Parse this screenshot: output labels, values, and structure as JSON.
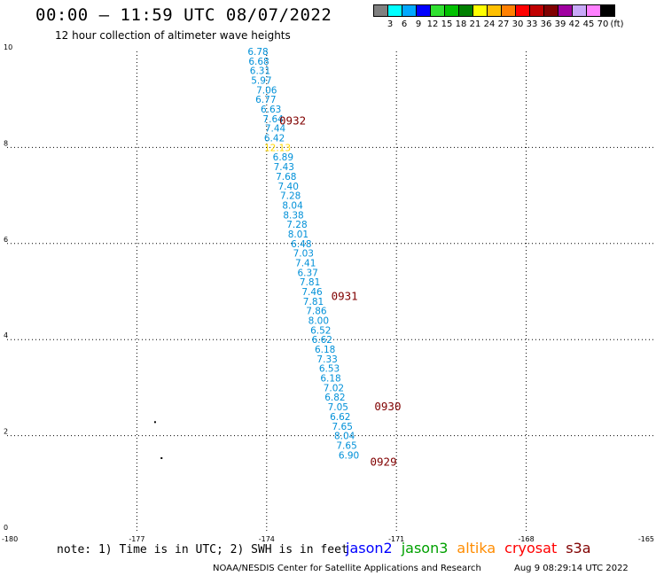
{
  "header": {
    "title": "00:00 – 11:59 UTC 08/07/2022",
    "subtitle": "12 hour collection of altimeter wave heights"
  },
  "legend": {
    "colors": [
      "#808080",
      "#00ffff",
      "#00a8ff",
      "#0000ff",
      "#30e030",
      "#00c000",
      "#008000",
      "#ffff00",
      "#ffc000",
      "#ff8000",
      "#ff0000",
      "#c00000",
      "#800000",
      "#a000a0",
      "#c8a8f8",
      "#ff80ff",
      "#000000"
    ],
    "labels": [
      "3",
      "6",
      "9",
      "12",
      "15",
      "18",
      "21",
      "24",
      "27",
      "30",
      "33",
      "36",
      "39",
      "42",
      "45",
      "70",
      "(ft)"
    ]
  },
  "chart_data": {
    "type": "scatter",
    "xlim": [
      -180,
      -165
    ],
    "ylim": [
      0,
      10
    ],
    "x_ticks": [
      "-180",
      "-177",
      "-174",
      "-171",
      "-168",
      "-165"
    ],
    "y_ticks": [
      "0",
      "2",
      "4",
      "6",
      "8",
      "10"
    ],
    "grid": true,
    "swh_points": [
      {
        "lon": -174.2,
        "lat": 10.0,
        "swh": "6.78",
        "color": "#0090d8"
      },
      {
        "lon": -174.18,
        "lat": 9.8,
        "swh": "6.68",
        "color": "#0090d8"
      },
      {
        "lon": -174.15,
        "lat": 9.6,
        "swh": "6.31",
        "color": "#0090d8"
      },
      {
        "lon": -174.12,
        "lat": 9.4,
        "swh": "5.97",
        "color": "#0090d8"
      },
      {
        "lon": -174.0,
        "lat": 9.2,
        "swh": "7.06",
        "color": "#0090d8"
      },
      {
        "lon": -174.02,
        "lat": 9.0,
        "swh": "6.77",
        "color": "#0090d8"
      },
      {
        "lon": -173.9,
        "lat": 8.8,
        "swh": "6.63",
        "color": "#0090d8"
      },
      {
        "lon": -173.85,
        "lat": 8.6,
        "swh": "7.64",
        "color": "#0090d8"
      },
      {
        "lon": -173.8,
        "lat": 8.4,
        "swh": "7.44",
        "color": "#0090d8"
      },
      {
        "lon": -173.82,
        "lat": 8.2,
        "swh": "6.42",
        "color": "#0090d8"
      },
      {
        "lon": -173.75,
        "lat": 8.0,
        "swh": "12.13",
        "color": "#ffd800"
      },
      {
        "lon": -173.62,
        "lat": 7.8,
        "swh": "6.89",
        "color": "#0090d8"
      },
      {
        "lon": -173.6,
        "lat": 7.6,
        "swh": "7.43",
        "color": "#0090d8"
      },
      {
        "lon": -173.55,
        "lat": 7.4,
        "swh": "7.68",
        "color": "#0090d8"
      },
      {
        "lon": -173.5,
        "lat": 7.2,
        "swh": "7.40",
        "color": "#0090d8"
      },
      {
        "lon": -173.45,
        "lat": 7.0,
        "swh": "7.28",
        "color": "#0090d8"
      },
      {
        "lon": -173.4,
        "lat": 6.8,
        "swh": "8.04",
        "color": "#0090d8"
      },
      {
        "lon": -173.38,
        "lat": 6.6,
        "swh": "8.38",
        "color": "#0090d8"
      },
      {
        "lon": -173.3,
        "lat": 6.4,
        "swh": "7.28",
        "color": "#0090d8"
      },
      {
        "lon": -173.27,
        "lat": 6.2,
        "swh": "8.01",
        "color": "#0090d8"
      },
      {
        "lon": -173.2,
        "lat": 6.0,
        "swh": "6.48",
        "color": "#0090d8"
      },
      {
        "lon": -173.15,
        "lat": 5.8,
        "swh": "7.03",
        "color": "#0090d8"
      },
      {
        "lon": -173.1,
        "lat": 5.6,
        "swh": "7.41",
        "color": "#0090d8"
      },
      {
        "lon": -173.05,
        "lat": 5.4,
        "swh": "6.37",
        "color": "#0090d8"
      },
      {
        "lon": -173.0,
        "lat": 5.2,
        "swh": "7.81",
        "color": "#0090d8"
      },
      {
        "lon": -172.95,
        "lat": 5.0,
        "swh": "7.46",
        "color": "#0090d8"
      },
      {
        "lon": -172.92,
        "lat": 4.8,
        "swh": "7.81",
        "color": "#0090d8"
      },
      {
        "lon": -172.85,
        "lat": 4.6,
        "swh": "7.86",
        "color": "#0090d8"
      },
      {
        "lon": -172.8,
        "lat": 4.4,
        "swh": "8.00",
        "color": "#0090d8"
      },
      {
        "lon": -172.75,
        "lat": 4.2,
        "swh": "6.52",
        "color": "#0090d8"
      },
      {
        "lon": -172.72,
        "lat": 4.0,
        "swh": "6.62",
        "color": "#0090d8"
      },
      {
        "lon": -172.65,
        "lat": 3.8,
        "swh": "6.18",
        "color": "#0090d8"
      },
      {
        "lon": -172.6,
        "lat": 3.6,
        "swh": "7.33",
        "color": "#0090d8"
      },
      {
        "lon": -172.55,
        "lat": 3.4,
        "swh": "6.53",
        "color": "#0090d8"
      },
      {
        "lon": -172.52,
        "lat": 3.2,
        "swh": "6.18",
        "color": "#0090d8"
      },
      {
        "lon": -172.45,
        "lat": 3.0,
        "swh": "7.02",
        "color": "#0090d8"
      },
      {
        "lon": -172.42,
        "lat": 2.8,
        "swh": "6.82",
        "color": "#0090d8"
      },
      {
        "lon": -172.35,
        "lat": 2.6,
        "swh": "7.05",
        "color": "#0090d8"
      },
      {
        "lon": -172.3,
        "lat": 2.4,
        "swh": "6.62",
        "color": "#0090d8"
      },
      {
        "lon": -172.25,
        "lat": 2.2,
        "swh": "7.65",
        "color": "#0090d8"
      },
      {
        "lon": -172.2,
        "lat": 2.0,
        "swh": "8.04",
        "color": "#0090d8"
      },
      {
        "lon": -172.15,
        "lat": 1.8,
        "swh": "7.65",
        "color": "#0090d8"
      },
      {
        "lon": -172.1,
        "lat": 1.6,
        "swh": "6.90",
        "color": "#0090d8"
      }
    ],
    "time_labels": [
      {
        "lon": -173.4,
        "lat": 8.55,
        "text": "0932"
      },
      {
        "lon": -172.2,
        "lat": 4.9,
        "text": "0931"
      },
      {
        "lon": -171.2,
        "lat": 2.6,
        "text": "0930"
      },
      {
        "lon": -171.3,
        "lat": 1.45,
        "text": "0929"
      }
    ],
    "islands": [
      {
        "lon": -176.6,
        "lat": 2.3
      },
      {
        "lon": -176.45,
        "lat": 1.55
      }
    ]
  },
  "footer": {
    "note": "note: 1) Time is in UTC; 2) SWH is in feet",
    "satellites": [
      {
        "name": "jason2",
        "color": "#0000ff"
      },
      {
        "name": "jason3",
        "color": "#00a000"
      },
      {
        "name": "altika",
        "color": "#ff8c00"
      },
      {
        "name": "cryosat",
        "color": "#ff0000"
      },
      {
        "name": "s3a",
        "color": "#800000"
      }
    ],
    "credit": "NOAA/NESDIS Center for Satellite Applications and Research",
    "timestamp": "Aug  9 08:29:14 UTC 2022"
  },
  "colors": {
    "time_label": "#800000",
    "grid": "#000000"
  }
}
